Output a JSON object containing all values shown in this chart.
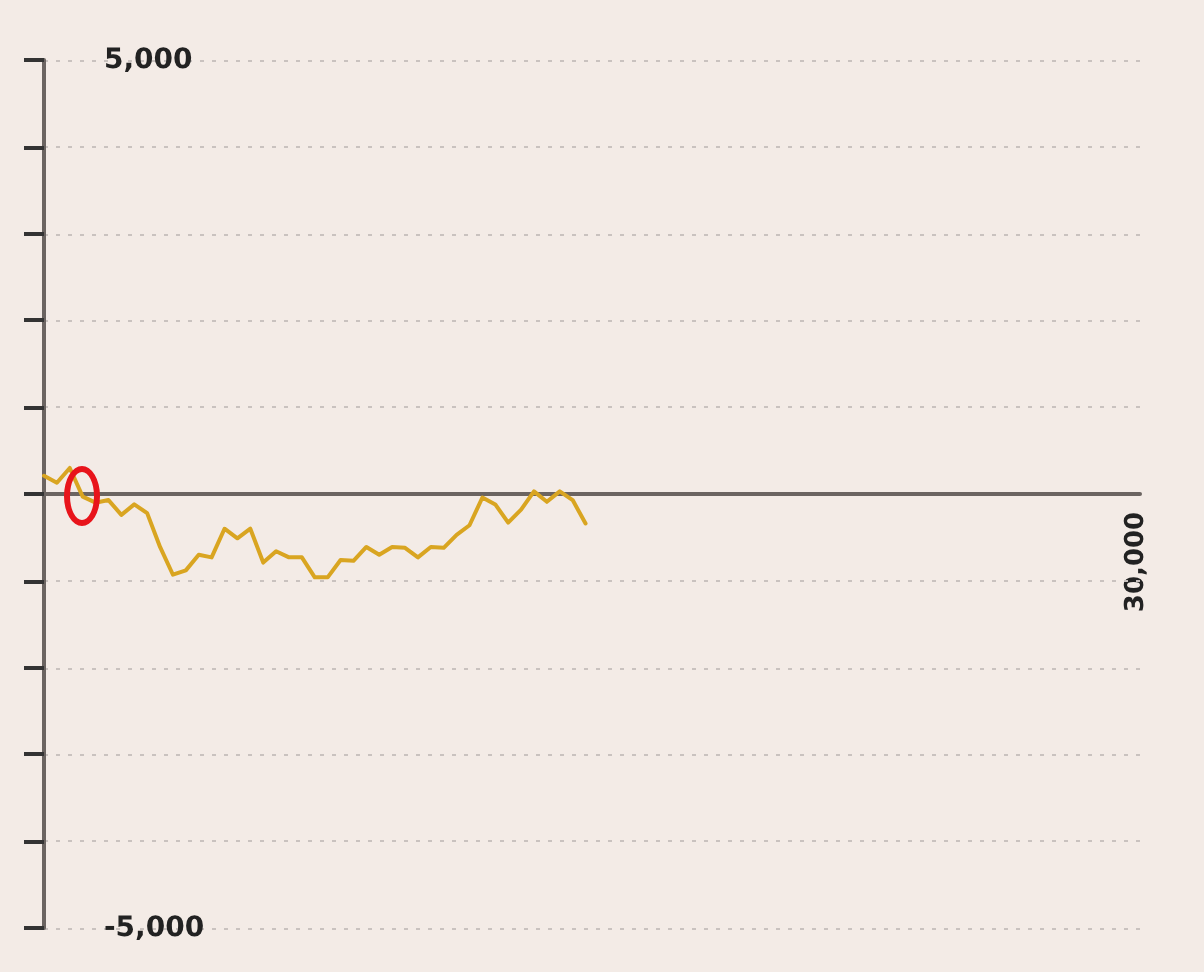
{
  "chart_data": {
    "type": "line",
    "categories": [
      null,
      null,
      null,
      null,
      null,
      null,
      null,
      null,
      null,
      null,
      null,
      null,
      null,
      null,
      null,
      null,
      null,
      null,
      null,
      null,
      null,
      null,
      null,
      null,
      null,
      null,
      null,
      null,
      null,
      null,
      null,
      null,
      null,
      null,
      null,
      null,
      null,
      null,
      null,
      null,
      null,
      null,
      null,
      null,
      null,
      null,
      null,
      null,
      null,
      null,
      null,
      null,
      null,
      null,
      null,
      null,
      null,
      null,
      null,
      null,
      null,
      null,
      null,
      null,
      null,
      null,
      null,
      null,
      null,
      null,
      null,
      null,
      null,
      null,
      null,
      null,
      null,
      null,
      null,
      null,
      null,
      null,
      null,
      null,
      null,
      null
    ],
    "series": [
      {
        "color": "#d9a521",
        "values": [
          210,
          130,
          300,
          -30,
          -100,
          -70,
          -240,
          -120,
          -220,
          -610,
          -930,
          -880,
          -700,
          -730,
          -400,
          -510,
          -400,
          -790,
          -660,
          -730,
          -730,
          -960,
          -960,
          -760,
          -770,
          -610,
          -700,
          -610,
          -620,
          -730,
          -610,
          -620,
          -470,
          -360,
          -40,
          -120,
          -330,
          -180,
          30,
          -90,
          30,
          -70,
          -340,
          null,
          null,
          null,
          null,
          null,
          null,
          null,
          null,
          null,
          null,
          null,
          null,
          null,
          null,
          null,
          null,
          null,
          null,
          null,
          null,
          null,
          null,
          null,
          null,
          null,
          null,
          null,
          null,
          null,
          null,
          null,
          null,
          null,
          null,
          null,
          null,
          null,
          null,
          null,
          null,
          null,
          null,
          null
        ]
      }
    ],
    "annotations": [
      "30,000"
    ],
    "ylim": [
      -5000,
      5000
    ],
    "yticks": [
      {
        "value": -5000,
        "label": "-5,000"
      },
      {
        "value": -4000,
        "label": null
      },
      {
        "value": -3000,
        "label": null
      },
      {
        "value": -2000,
        "label": null
      },
      {
        "value": -1000,
        "label": null
      },
      {
        "value": 0,
        "label": null
      },
      {
        "value": 1000,
        "label": null
      },
      {
        "value": 2000,
        "label": null
      },
      {
        "value": 3000,
        "label": null
      },
      {
        "value": 4000,
        "label": null
      },
      {
        "value": 5000,
        "label": "5,000"
      }
    ],
    "grid": "y",
    "marker": "none",
    "line_style": "solid"
  }
}
